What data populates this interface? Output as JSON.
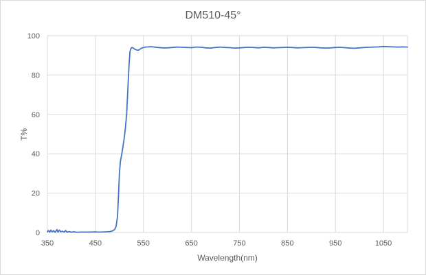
{
  "chart_data": {
    "type": "line",
    "title": "DM510-45°",
    "xlabel": "Wavelength(nm)",
    "ylabel": "T%",
    "xlim": [
      350,
      1100
    ],
    "ylim": [
      0,
      100
    ],
    "x_ticks": [
      350,
      450,
      550,
      650,
      750,
      850,
      950,
      1050
    ],
    "x_tick_labels": [
      "350",
      "450",
      "550",
      "650",
      "750",
      "850",
      "950",
      "1050"
    ],
    "y_ticks": [
      0,
      20,
      40,
      60,
      80,
      100
    ],
    "y_tick_labels": [
      "0",
      "20",
      "40",
      "60",
      "80",
      "100"
    ],
    "grid": "vertical and horizontal major gridlines",
    "legend": "none",
    "series": [
      {
        "color": "#4472c4",
        "x": [
          350,
          352,
          355,
          357,
          360,
          363,
          366,
          370,
          372,
          375,
          378,
          381,
          385,
          388,
          391,
          395,
          400,
          405,
          410,
          420,
          430,
          440,
          450,
          455,
          460,
          470,
          480,
          485,
          490,
          493,
          496,
          498,
          500,
          502,
          505,
          507,
          510,
          512,
          515,
          518,
          520,
          522,
          524,
          526,
          528,
          530,
          533,
          536,
          540,
          545,
          550,
          555,
          560,
          565,
          570,
          580,
          590,
          600,
          610,
          620,
          630,
          640,
          650,
          660,
          670,
          680,
          690,
          700,
          710,
          720,
          730,
          740,
          750,
          760,
          770,
          780,
          790,
          800,
          810,
          820,
          830,
          840,
          850,
          860,
          870,
          880,
          890,
          900,
          910,
          920,
          930,
          940,
          950,
          960,
          970,
          980,
          990,
          1000,
          1010,
          1020,
          1030,
          1040,
          1050,
          1060,
          1070,
          1080,
          1090,
          1100
        ],
        "y": [
          0.3,
          1.0,
          0.2,
          1.2,
          0.3,
          0.9,
          0.1,
          1.5,
          0.2,
          1.2,
          0.3,
          0.7,
          0.2,
          1.0,
          0.1,
          0.5,
          0.1,
          0.4,
          0.1,
          0.2,
          0.2,
          0.2,
          0.3,
          0.2,
          0.2,
          0.3,
          0.5,
          0.7,
          1.5,
          3,
          8,
          18,
          30,
          36,
          40,
          43,
          48,
          52,
          60,
          75,
          85,
          92,
          93.5,
          94,
          93.8,
          93.5,
          93,
          92.7,
          92.6,
          93.5,
          94,
          94.2,
          94.3,
          94.4,
          94.3,
          94,
          93.8,
          93.8,
          94,
          94.2,
          94.1,
          94,
          93.9,
          94.2,
          94.1,
          93.8,
          93.7,
          94,
          94.2,
          94,
          93.9,
          93.7,
          93.8,
          94,
          94.1,
          94,
          93.8,
          94.1,
          94,
          93.8,
          93.9,
          94,
          94.1,
          94,
          93.8,
          93.9,
          94,
          94.1,
          94,
          93.8,
          93.7,
          93.8,
          94,
          94.1,
          93.9,
          93.7,
          93.6,
          93.8,
          94,
          94.1,
          94.2,
          94.3,
          94.5,
          94.4,
          94.3,
          94.2,
          94.3,
          94.2
        ]
      }
    ]
  }
}
